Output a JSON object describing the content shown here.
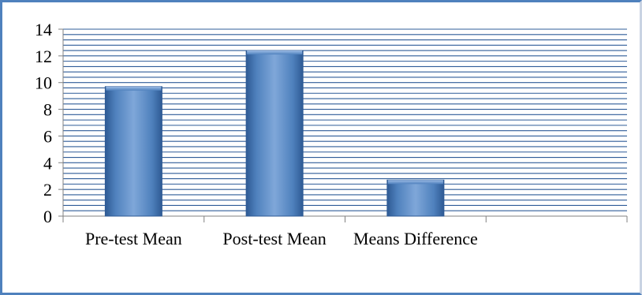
{
  "chart_data": {
    "type": "bar",
    "categories": [
      "Pre-test Mean",
      "Post-test Mean",
      "Means Difference",
      ""
    ],
    "values": [
      9.7,
      12.4,
      2.7,
      null
    ],
    "ylim": [
      0,
      14
    ],
    "y_ticks": [
      0,
      2,
      4,
      6,
      8,
      10,
      12,
      14
    ],
    "minor_gridline_step": 0.4,
    "grid": true,
    "legend": "none",
    "colors": {
      "bar": "#4f81bd",
      "bar_dark": "#2e5a94",
      "bar_light": "#7fa7d9",
      "grid": "#2f5c98",
      "frame": "#4f81bd"
    }
  }
}
